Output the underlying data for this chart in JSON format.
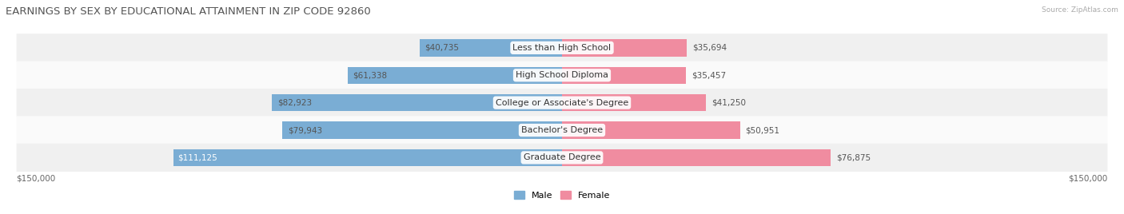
{
  "title": "EARNINGS BY SEX BY EDUCATIONAL ATTAINMENT IN ZIP CODE 92860",
  "source": "Source: ZipAtlas.com",
  "categories": [
    "Less than High School",
    "High School Diploma",
    "College or Associate's Degree",
    "Bachelor's Degree",
    "Graduate Degree"
  ],
  "male_values": [
    40735,
    61338,
    82923,
    79943,
    111125
  ],
  "female_values": [
    35694,
    35457,
    41250,
    50951,
    76875
  ],
  "male_color": "#7aadd4",
  "female_color": "#f08ca0",
  "axis_max": 150000,
  "title_color": "#555555",
  "title_fontsize": 9.5,
  "bar_height": 0.62,
  "category_label_fontsize": 8.0,
  "value_label_fontsize": 7.5
}
